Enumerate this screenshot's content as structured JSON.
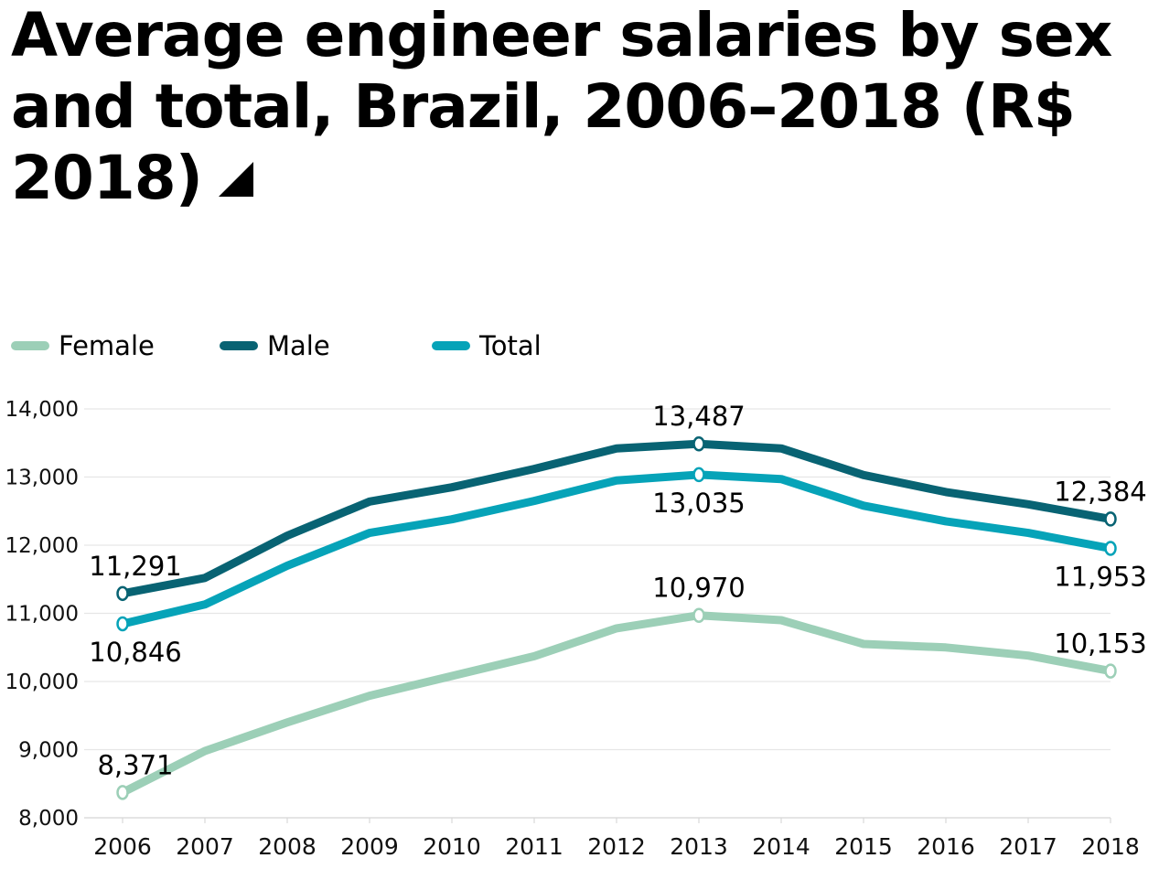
{
  "title": "Average engineer salaries by sex and total, Brazil, 2006–2018 (R$ 2018)",
  "legend": [
    {
      "label": "Female",
      "color": "#9ccfb7"
    },
    {
      "label": "Male",
      "color": "#086373"
    },
    {
      "label": "Total",
      "color": "#06a3b8"
    }
  ],
  "chart_data": {
    "type": "line",
    "title": "Average engineer salaries by sex and total, Brazil, 2006–2018 (R$ 2018)",
    "xlabel": "",
    "ylabel": "",
    "x": [
      "2006",
      "2007",
      "2008",
      "2009",
      "2010",
      "2011",
      "2012",
      "2013",
      "2014",
      "2015",
      "2016",
      "2017",
      "2018"
    ],
    "ylim": [
      8000,
      14000
    ],
    "yticks": [
      8000,
      9000,
      10000,
      11000,
      12000,
      13000,
      14000
    ],
    "ytick_labels": [
      "8,000",
      "9,000",
      "10,000",
      "11,000",
      "12,000",
      "13,000",
      "14,000"
    ],
    "grid": "horizontal",
    "legend_position": "top-left",
    "series": [
      {
        "name": "Female",
        "color": "#9ccfb7",
        "values": [
          8371,
          8980,
          9400,
          9790,
          10080,
          10370,
          10780,
          10970,
          10900,
          10550,
          10500,
          10380,
          10153
        ]
      },
      {
        "name": "Male",
        "color": "#086373",
        "values": [
          11291,
          11520,
          12140,
          12640,
          12850,
          13120,
          13420,
          13487,
          13420,
          13030,
          12780,
          12600,
          12384
        ]
      },
      {
        "name": "Total",
        "color": "#06a3b8",
        "values": [
          10846,
          11130,
          11700,
          12180,
          12380,
          12650,
          12950,
          13035,
          12970,
          12580,
          12350,
          12180,
          11953
        ]
      }
    ],
    "annotations": [
      {
        "series": "Male",
        "x": "2006",
        "text": "11,291",
        "pos": "above"
      },
      {
        "series": "Total",
        "x": "2006",
        "text": "10,846",
        "pos": "below"
      },
      {
        "series": "Female",
        "x": "2006",
        "text": "8,371",
        "pos": "above"
      },
      {
        "series": "Male",
        "x": "2013",
        "text": "13,487",
        "pos": "above"
      },
      {
        "series": "Total",
        "x": "2013",
        "text": "13,035",
        "pos": "below"
      },
      {
        "series": "Female",
        "x": "2013",
        "text": "10,970",
        "pos": "above"
      },
      {
        "series": "Male",
        "x": "2018",
        "text": "12,384",
        "pos": "above"
      },
      {
        "series": "Total",
        "x": "2018",
        "text": "11,953",
        "pos": "below"
      },
      {
        "series": "Female",
        "x": "2018",
        "text": "10,153",
        "pos": "above"
      }
    ]
  }
}
